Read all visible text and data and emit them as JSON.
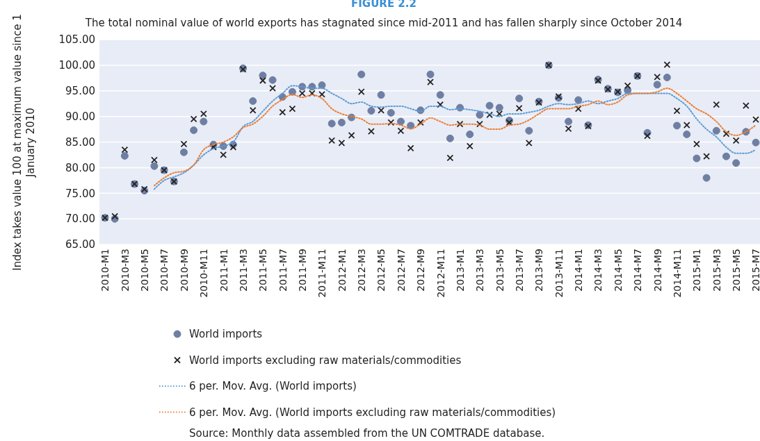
{
  "chart_data": {
    "type": "scatter",
    "title": "FIGURE 2.2",
    "subtitle": "The total nominal value of world exports has stagnated since mid-2011 and has fallen sharply since October 2014",
    "ylabel": "Index takes value 100 at maximum value since 1 January 2010",
    "annotations": [
      "Source: Monthly data assembled from the UN COMTRADE database."
    ],
    "categories": [
      "2010-M1",
      null,
      "2010-M3",
      null,
      "2010-M5",
      null,
      "2010-M7",
      null,
      "2010-M9",
      null,
      "2010-M11",
      null,
      "2011-M1",
      null,
      "2011-M3",
      null,
      "2011-M5",
      null,
      "2011-M7",
      null,
      "2011-M9",
      null,
      "2011-M11",
      null,
      "2012-M1",
      null,
      "2012-M3",
      null,
      "2012-M5",
      null,
      "2012-M7",
      null,
      "2012-M9",
      null,
      "2012-M11",
      null,
      "2013-M1",
      null,
      "2013-M3",
      null,
      "2013-M5",
      null,
      "2013-M7",
      null,
      "2013-M9",
      null,
      "2013-M11",
      null,
      "2014-M1",
      null,
      "2014-M3",
      null,
      "2014-M5",
      null,
      "2014-M7",
      null,
      "2014-M9",
      null,
      "2014-M11",
      null,
      "2015-M1",
      null,
      "2015-M3",
      null,
      "2015-M5",
      null,
      "2015-M7"
    ],
    "ylim": [
      65,
      105
    ],
    "yticks": [
      {
        "value": 65,
        "label": "65.00"
      },
      {
        "value": 70,
        "label": "70.00"
      },
      {
        "value": 75,
        "label": "75.00"
      },
      {
        "value": 80,
        "label": "80.00"
      },
      {
        "value": 85,
        "label": "85.00"
      },
      {
        "value": 90,
        "label": "90.00"
      },
      {
        "value": 95,
        "label": "95.00"
      },
      {
        "value": 100,
        "label": "100.00"
      },
      {
        "value": 105,
        "label": "105.00"
      }
    ],
    "grid": "y",
    "legend": "bottom",
    "series": [
      {
        "name": "World imports",
        "marker": "circle",
        "color": "#6f7fa3",
        "values": [
          70.2,
          70.0,
          82.3,
          76.8,
          75.5,
          80.3,
          79.5,
          77.3,
          83.0,
          87.3,
          89.0,
          84.5,
          84.2,
          84.5,
          99.4,
          93.0,
          98.0,
          97.1,
          93.8,
          94.8,
          95.8,
          95.8,
          96.1,
          88.6,
          88.8,
          89.8,
          98.2,
          91.1,
          94.2,
          90.7,
          89.0,
          88.2,
          91.2,
          98.2,
          94.2,
          85.7,
          91.7,
          86.5,
          90.3,
          92.1,
          91.7,
          89.2,
          93.5,
          87.2,
          92.9,
          100.0,
          93.6,
          89.0,
          93.2,
          88.3,
          97.2,
          95.4,
          94.7,
          95.1,
          97.9,
          86.8,
          96.2,
          97.6,
          88.2,
          86.5,
          81.8,
          78.0,
          87.2,
          82.2,
          80.9,
          87.0,
          84.9
        ]
      },
      {
        "name": "World imports excluding raw materials/commodities",
        "marker": "cross",
        "color": "#222222",
        "values": [
          70.2,
          70.5,
          83.5,
          76.8,
          75.8,
          81.5,
          79.5,
          77.3,
          84.6,
          89.5,
          90.5,
          84.0,
          82.5,
          84.0,
          99.2,
          91.2,
          97.0,
          95.5,
          90.8,
          91.5,
          94.5,
          94.5,
          94.3,
          85.3,
          84.8,
          86.3,
          94.8,
          87.1,
          91.2,
          88.8,
          87.2,
          83.8,
          88.8,
          96.7,
          92.3,
          81.9,
          88.5,
          84.2,
          88.5,
          90.3,
          90.5,
          88.8,
          91.6,
          84.8,
          92.7,
          100.0,
          93.9,
          87.6,
          91.5,
          88.1,
          97.0,
          95.3,
          94.8,
          96.0,
          97.9,
          86.2,
          97.7,
          100.1,
          91.1,
          88.3,
          84.6,
          82.2,
          92.3,
          86.6,
          85.3,
          92.1,
          89.4
        ]
      },
      {
        "name": "6 per. Mov. Avg. (World imports)",
        "type": "line",
        "line_style": "dotted",
        "marker": "none",
        "color": "#5b9bd5",
        "values": [
          null,
          null,
          null,
          null,
          null,
          75.8,
          77.5,
          78.2,
          79.0,
          80.5,
          82.5,
          83.7,
          84.2,
          85.0,
          88.0,
          89.0,
          91.0,
          93.0,
          94.5,
          96.0,
          95.8,
          95.5,
          95.5,
          94.5,
          93.5,
          92.5,
          92.8,
          92.0,
          91.8,
          92.0,
          92.0,
          91.5,
          91.0,
          92.0,
          92.0,
          91.3,
          91.5,
          91.3,
          91.0,
          90.5,
          90.0,
          90.5,
          90.5,
          90.8,
          91.2,
          92.0,
          92.5,
          92.3,
          92.5,
          93.0,
          92.5,
          93.0,
          93.5,
          94.5,
          94.5,
          94.5,
          94.5,
          94.5,
          93.5,
          92.0,
          89.5,
          87.5,
          86.0,
          84.0,
          82.8,
          82.8,
          83.5
        ]
      },
      {
        "name": "6 per. Mov. Avg. (World imports excluding raw materials/commodities)",
        "type": "line",
        "line_style": "dotted",
        "marker": "none",
        "color": "#ed7d31",
        "values": [
          null,
          null,
          null,
          null,
          null,
          76.5,
          78.0,
          79.0,
          79.3,
          80.5,
          83.5,
          84.5,
          85.0,
          86.0,
          87.8,
          88.5,
          90.0,
          92.0,
          93.3,
          94.3,
          93.7,
          94.2,
          93.5,
          91.5,
          90.5,
          90.0,
          89.5,
          88.5,
          88.5,
          88.6,
          88.3,
          87.6,
          88.5,
          89.7,
          89.0,
          88.3,
          88.5,
          88.5,
          88.3,
          87.5,
          87.5,
          88.3,
          88.5,
          89.3,
          90.5,
          91.5,
          91.5,
          91.5,
          92.0,
          92.3,
          93.0,
          92.3,
          92.8,
          94.2,
          94.5,
          94.5,
          94.8,
          95.5,
          94.5,
          93.0,
          91.5,
          90.5,
          89.0,
          87.0,
          86.3,
          87.0,
          88.3
        ]
      }
    ]
  }
}
